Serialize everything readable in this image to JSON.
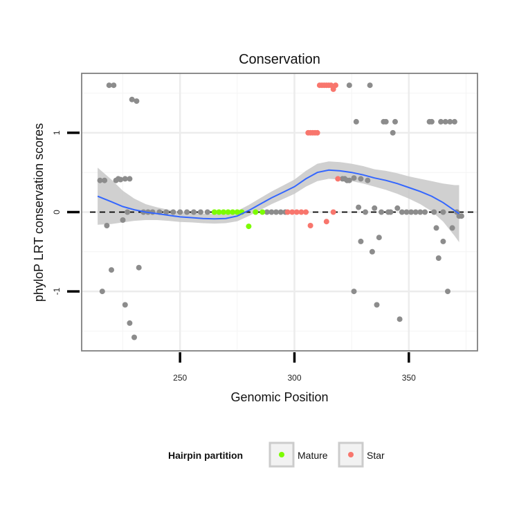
{
  "chart_data": {
    "type": "scatter",
    "title": "Conservation",
    "xlabel": "Genomic Position",
    "ylabel": "phyloP LRT conservation scores",
    "xlim": [
      207,
      380
    ],
    "ylim": [
      -1.75,
      1.75
    ],
    "x_ticks": [
      250,
      300,
      350
    ],
    "x_tick_labels": [
      "250",
      "300",
      "350"
    ],
    "y_ticks": [
      -1,
      0,
      1
    ],
    "y_tick_labels": [
      "-1",
      "0",
      "1"
    ],
    "grid": true,
    "reference_line": {
      "y": 0,
      "style": "dashed"
    },
    "legend": {
      "title": "Hairpin partition",
      "position": "bottom",
      "entries": [
        {
          "label": "Mature",
          "color": "#7cfc00"
        },
        {
          "label": "Star",
          "color": "#f8766d"
        }
      ]
    },
    "colors": {
      "other": "#8c8c8c",
      "Mature": "#7cfc00",
      "Star": "#f8766d",
      "smooth": "#3366ff",
      "band": "#c8c8c8"
    },
    "series": [
      {
        "name": "Other",
        "points": [
          [
            215,
            0.4
          ],
          [
            217,
            0.4
          ],
          [
            216,
            -1.0
          ],
          [
            218,
            -0.17
          ],
          [
            219,
            1.6
          ],
          [
            221,
            1.6
          ],
          [
            220,
            -0.73
          ],
          [
            222,
            0.4
          ],
          [
            224,
            0.41
          ],
          [
            223,
            0.42
          ],
          [
            225,
            -0.1
          ],
          [
            226,
            0.42
          ],
          [
            226,
            -1.17
          ],
          [
            227,
            0.0
          ],
          [
            228,
            0.42
          ],
          [
            228,
            -1.4
          ],
          [
            229,
            1.42
          ],
          [
            230,
            -1.58
          ],
          [
            231,
            1.4
          ],
          [
            232,
            -0.7
          ],
          [
            234,
            0.0
          ],
          [
            236,
            0.0
          ],
          [
            238,
            0.0
          ],
          [
            241,
            0.0
          ],
          [
            244,
            0.0
          ],
          [
            247,
            0.0
          ],
          [
            250,
            0.0
          ],
          [
            253,
            0.0
          ],
          [
            256,
            0.0
          ],
          [
            259,
            0.0
          ],
          [
            262,
            0.0
          ],
          [
            288,
            0.0
          ],
          [
            290,
            0.0
          ],
          [
            292,
            0.0
          ],
          [
            294,
            0.0
          ],
          [
            296,
            0.0
          ],
          [
            324,
            1.6
          ],
          [
            321,
            0.42
          ],
          [
            322,
            0.42
          ],
          [
            323,
            0.4
          ],
          [
            324,
            0.4
          ],
          [
            326,
            0.43
          ],
          [
            326,
            -1.0
          ],
          [
            327,
            1.14
          ],
          [
            328,
            0.06
          ],
          [
            329,
            0.42
          ],
          [
            329,
            -0.37
          ],
          [
            331,
            0.0
          ],
          [
            332,
            0.4
          ],
          [
            333,
            1.6
          ],
          [
            334,
            -0.5
          ],
          [
            335,
            0.05
          ],
          [
            336,
            -1.17
          ],
          [
            337,
            -0.32
          ],
          [
            338,
            0.0
          ],
          [
            339,
            1.14
          ],
          [
            340,
            1.14
          ],
          [
            341,
            0.0
          ],
          [
            342,
            0.0
          ],
          [
            343,
            1.0
          ],
          [
            344,
            1.14
          ],
          [
            345,
            0.05
          ],
          [
            346,
            -1.35
          ],
          [
            347,
            0.0
          ],
          [
            349,
            0.0
          ],
          [
            351,
            0.0
          ],
          [
            353,
            0.0
          ],
          [
            355,
            0.0
          ],
          [
            357,
            0.0
          ],
          [
            359,
            1.14
          ],
          [
            360,
            1.14
          ],
          [
            361,
            0.0
          ],
          [
            362,
            -0.2
          ],
          [
            363,
            -0.58
          ],
          [
            364,
            1.14
          ],
          [
            365,
            0.0
          ],
          [
            365,
            -0.37
          ],
          [
            366,
            1.14
          ],
          [
            367,
            -1.0
          ],
          [
            368,
            1.14
          ],
          [
            369,
            -0.2
          ],
          [
            370,
            1.14
          ],
          [
            371,
            0.0
          ],
          [
            372,
            -0.05
          ],
          [
            373,
            -0.05
          ]
        ]
      },
      {
        "name": "Mature",
        "points": [
          [
            265,
            0.0
          ],
          [
            267,
            0.0
          ],
          [
            269,
            0.0
          ],
          [
            271,
            0.0
          ],
          [
            273,
            0.0
          ],
          [
            275,
            0.0
          ],
          [
            277,
            0.0
          ],
          [
            280,
            -0.18
          ],
          [
            283,
            0.0
          ],
          [
            286,
            0.0
          ]
        ]
      },
      {
        "name": "Star",
        "points": [
          [
            297,
            0.0
          ],
          [
            299,
            0.0
          ],
          [
            301,
            0.0
          ],
          [
            303,
            0.0
          ],
          [
            305,
            0.0
          ],
          [
            306,
            1.0
          ],
          [
            307,
            -0.17
          ],
          [
            307,
            1.0
          ],
          [
            308,
            1.0
          ],
          [
            309,
            1.0
          ],
          [
            310,
            1.0
          ],
          [
            311,
            1.6
          ],
          [
            312,
            1.6
          ],
          [
            313,
            1.6
          ],
          [
            314,
            -0.12
          ],
          [
            314,
            1.6
          ],
          [
            315,
            1.6
          ],
          [
            316,
            1.6
          ],
          [
            317,
            0.0
          ],
          [
            317,
            1.55
          ],
          [
            318,
            1.6
          ],
          [
            319,
            0.42
          ]
        ]
      }
    ],
    "smooth": {
      "method": "loess",
      "x": [
        214,
        220,
        225,
        230,
        235,
        240,
        245,
        250,
        255,
        260,
        265,
        270,
        275,
        280,
        285,
        290,
        295,
        300,
        305,
        310,
        315,
        320,
        325,
        330,
        335,
        340,
        345,
        350,
        355,
        360,
        365,
        370,
        372
      ],
      "y": [
        0.2,
        0.13,
        0.07,
        0.03,
        0.0,
        -0.02,
        -0.04,
        -0.06,
        -0.07,
        -0.08,
        -0.085,
        -0.08,
        -0.05,
        0.02,
        0.1,
        0.18,
        0.25,
        0.32,
        0.42,
        0.5,
        0.53,
        0.52,
        0.5,
        0.47,
        0.43,
        0.4,
        0.36,
        0.31,
        0.26,
        0.2,
        0.12,
        0.02,
        -0.02
      ],
      "band_halfwidth": [
        0.36,
        0.28,
        0.2,
        0.14,
        0.1,
        0.08,
        0.07,
        0.065,
        0.06,
        0.06,
        0.06,
        0.06,
        0.065,
        0.07,
        0.075,
        0.08,
        0.085,
        0.09,
        0.1,
        0.11,
        0.11,
        0.11,
        0.11,
        0.11,
        0.11,
        0.12,
        0.13,
        0.14,
        0.16,
        0.19,
        0.24,
        0.32,
        0.36
      ]
    }
  }
}
